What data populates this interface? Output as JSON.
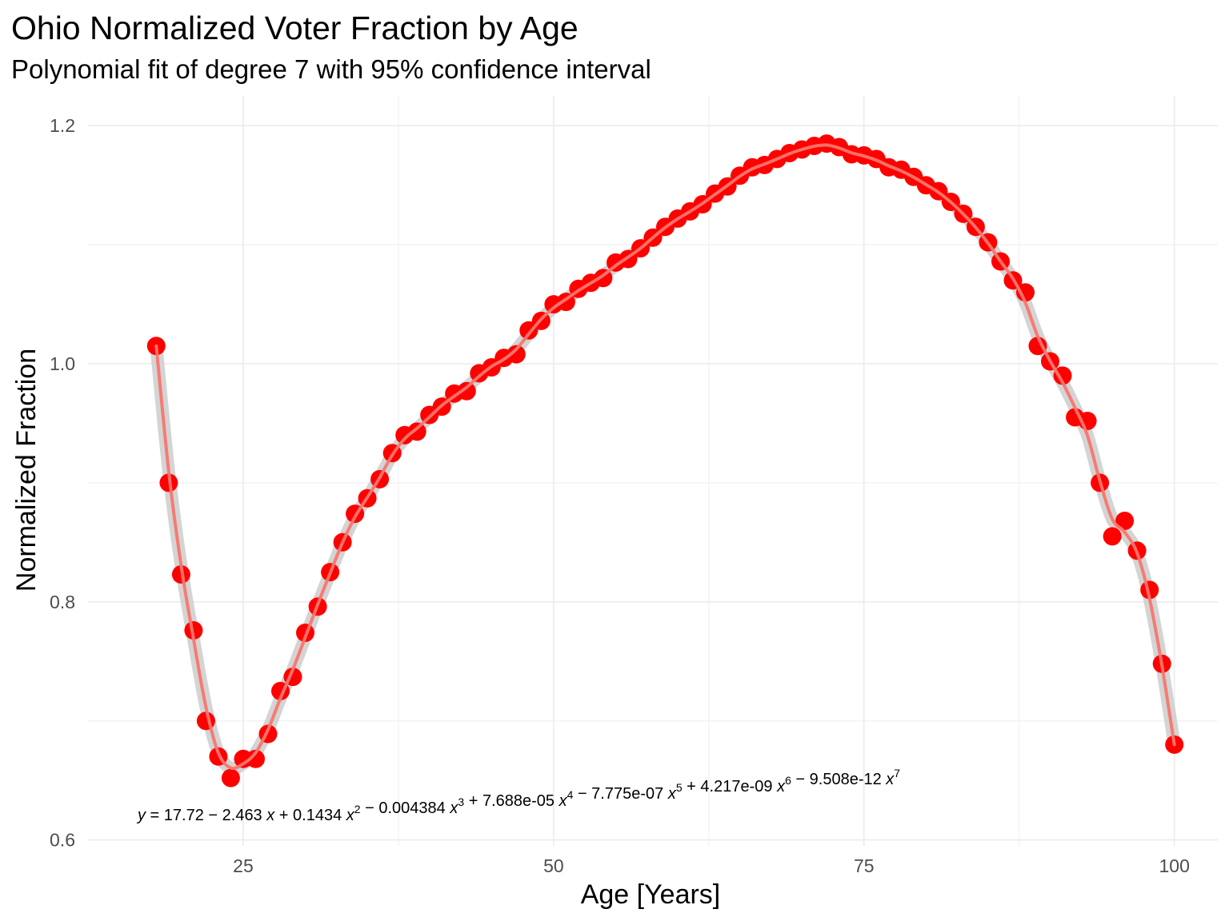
{
  "chart_data": {
    "type": "scatter",
    "title": "Ohio Normalized Voter Fraction by Age",
    "subtitle": "Polynomial fit of degree 7 with 95% confidence interval",
    "xlabel": "Age [Years]",
    "ylabel": "Normalized Fraction",
    "xlim": [
      12.5,
      103.5
    ],
    "ylim": [
      0.595,
      1.225
    ],
    "x_ticks": [
      25,
      50,
      75,
      100
    ],
    "x_tick_labels": [
      "25",
      "50",
      "75",
      "100"
    ],
    "y_ticks": [
      0.6,
      0.8,
      1.0,
      1.2
    ],
    "y_tick_labels": [
      "0.6",
      "0.8",
      "1.0",
      "1.2"
    ],
    "grid": true,
    "point_color": "#ff0000",
    "fit_color": "#f8766d",
    "ci_color": "#cccccc",
    "equation": {
      "parts": [
        {
          "t": "y",
          "i": true
        },
        {
          "t": " = 17.72 − 2.463 "
        },
        {
          "t": "x",
          "i": true
        },
        {
          "t": " + 0.1434 "
        },
        {
          "t": "x",
          "i": true
        },
        {
          "t": "2",
          "s": true
        },
        {
          "t": " − 0.004384 "
        },
        {
          "t": "x",
          "i": true
        },
        {
          "t": "3",
          "s": true
        },
        {
          "t": " + 7.688e-05 "
        },
        {
          "t": "x",
          "i": true
        },
        {
          "t": "4",
          "s": true
        },
        {
          "t": " − 7.775e-07 "
        },
        {
          "t": "x",
          "i": true
        },
        {
          "t": "5",
          "s": true
        },
        {
          "t": " + 4.217e-09 "
        },
        {
          "t": "x",
          "i": true
        },
        {
          "t": "6",
          "s": true
        },
        {
          "t": " − 9.508e-12 "
        },
        {
          "t": "x",
          "i": true
        },
        {
          "t": "7",
          "s": true
        }
      ]
    },
    "series": [
      {
        "x": [
          18,
          19,
          20,
          21,
          22,
          23,
          24,
          25,
          26,
          27,
          28,
          29,
          30,
          31,
          32,
          33,
          34,
          35,
          36,
          37,
          38,
          39,
          40,
          41,
          42,
          43,
          44,
          45,
          46,
          47,
          48,
          49,
          50,
          51,
          52,
          53,
          54,
          55,
          56,
          57,
          58,
          59,
          60,
          61,
          62,
          63,
          64,
          65,
          66,
          67,
          68,
          69,
          70,
          71,
          72,
          73,
          74,
          75,
          76,
          77,
          78,
          79,
          80,
          81,
          82,
          83,
          84,
          85,
          86,
          87,
          88,
          89,
          90,
          91,
          92,
          93,
          94,
          95,
          96,
          97,
          98,
          99,
          100
        ],
        "y": [
          1.015,
          0.9,
          0.823,
          0.776,
          0.7,
          0.67,
          0.652,
          0.668,
          0.668,
          0.689,
          0.725,
          0.737,
          0.774,
          0.796,
          0.825,
          0.85,
          0.874,
          0.887,
          0.903,
          0.925,
          0.94,
          0.943,
          0.957,
          0.964,
          0.975,
          0.977,
          0.992,
          0.997,
          1.005,
          1.008,
          1.028,
          1.036,
          1.05,
          1.052,
          1.063,
          1.068,
          1.072,
          1.085,
          1.088,
          1.097,
          1.106,
          1.115,
          1.122,
          1.128,
          1.134,
          1.143,
          1.149,
          1.158,
          1.165,
          1.167,
          1.172,
          1.177,
          1.18,
          1.183,
          1.185,
          1.182,
          1.176,
          1.175,
          1.172,
          1.165,
          1.163,
          1.157,
          1.15,
          1.145,
          1.136,
          1.126,
          1.115,
          1.102,
          1.086,
          1.07,
          1.06,
          1.015,
          1.002,
          0.99,
          0.955,
          0.952,
          0.9,
          0.855,
          0.868,
          0.843,
          0.81,
          0.748,
          0.68
        ]
      }
    ]
  }
}
